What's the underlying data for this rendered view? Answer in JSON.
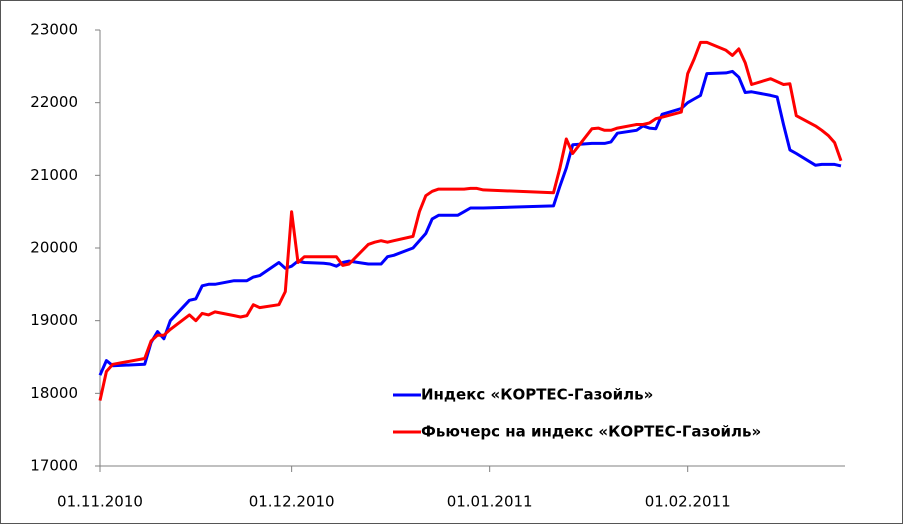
{
  "chart_data": {
    "type": "line",
    "x": [
      "01.11.2010",
      "02.11.2010",
      "03.11.2010",
      "08.11.2010",
      "09.11.2010",
      "10.11.2010",
      "11.11.2010",
      "12.11.2010",
      "15.11.2010",
      "16.11.2010",
      "17.11.2010",
      "18.11.2010",
      "19.11.2010",
      "22.11.2010",
      "23.11.2010",
      "24.11.2010",
      "25.11.2010",
      "26.11.2010",
      "29.11.2010",
      "30.11.2010",
      "01.12.2010",
      "02.12.2010",
      "03.12.2010",
      "06.12.2010",
      "07.12.2010",
      "08.12.2010",
      "09.12.2010",
      "10.12.2010",
      "13.12.2010",
      "14.12.2010",
      "15.12.2010",
      "16.12.2010",
      "17.12.2010",
      "20.12.2010",
      "21.12.2010",
      "22.12.2010",
      "23.12.2010",
      "24.12.2010",
      "27.12.2010",
      "28.12.2010",
      "29.12.2010",
      "30.12.2010",
      "31.12.2010",
      "11.01.2011",
      "12.01.2011",
      "13.01.2011",
      "14.01.2011",
      "17.01.2011",
      "18.01.2011",
      "19.01.2011",
      "20.01.2011",
      "21.01.2011",
      "24.01.2011",
      "25.01.2011",
      "26.01.2011",
      "27.01.2011",
      "28.01.2011",
      "31.01.2011",
      "01.02.2011",
      "02.02.2011",
      "03.02.2011",
      "04.02.2011",
      "07.02.2011",
      "08.02.2011",
      "09.02.2011",
      "10.02.2011",
      "11.02.2011",
      "14.02.2011",
      "15.02.2011",
      "16.02.2011",
      "17.02.2011",
      "18.02.2011",
      "21.02.2011",
      "22.02.2011",
      "23.02.2011",
      "24.02.2011",
      "25.02.2011"
    ],
    "series": [
      {
        "name": "Индекс «КОРТЕС-Газойль»",
        "color": "#0000ff",
        "values": [
          18250,
          18450,
          18380,
          18400,
          18700,
          18850,
          18750,
          19000,
          19280,
          19300,
          19480,
          19500,
          19500,
          19550,
          19550,
          19550,
          19600,
          19620,
          19800,
          19720,
          19750,
          19820,
          19800,
          19790,
          19780,
          19750,
          19800,
          19820,
          19780,
          19780,
          19780,
          19880,
          19900,
          20000,
          20100,
          20200,
          20400,
          20450,
          20450,
          20500,
          20550,
          20550,
          20550,
          20580,
          20850,
          21100,
          21420,
          21440,
          21440,
          21440,
          21460,
          21580,
          21620,
          21680,
          21650,
          21640,
          21840,
          21920,
          22000,
          22050,
          22100,
          22400,
          22410,
          22430,
          22350,
          22140,
          22150,
          22100,
          22080,
          21700,
          21350,
          21300,
          21140,
          21150,
          21150,
          21150,
          21130
        ]
      },
      {
        "name": "Фьючерс на индекс «КОРТЕС-Газойль»",
        "color": "#ff0000",
        "values": [
          17900,
          18300,
          18400,
          18480,
          18720,
          18800,
          18800,
          18880,
          19080,
          19000,
          19100,
          19080,
          19120,
          19070,
          19050,
          19070,
          19220,
          19180,
          19220,
          19400,
          20500,
          19800,
          19880,
          19880,
          19880,
          19880,
          19760,
          19780,
          20050,
          20080,
          20100,
          20080,
          20100,
          20160,
          20500,
          20720,
          20780,
          20810,
          20810,
          20810,
          20820,
          20820,
          20800,
          20760,
          21100,
          21500,
          21300,
          21640,
          21650,
          21620,
          21620,
          21650,
          21700,
          21700,
          21720,
          21780,
          21800,
          21870,
          22400,
          22600,
          22830,
          22830,
          22720,
          22650,
          22740,
          22550,
          22250,
          22330,
          22290,
          22250,
          22260,
          21820,
          21680,
          21620,
          21550,
          21450,
          21200
        ]
      }
    ],
    "xlim": [
      "01.11.2010",
      "25.02.2011"
    ],
    "xticks": [
      "01.11.2010",
      "01.12.2010",
      "01.01.2011",
      "01.02.2011"
    ],
    "ylim": [
      17000,
      23000
    ],
    "yticks": [
      17000,
      18000,
      19000,
      20000,
      21000,
      22000,
      23000
    ],
    "grid": false,
    "legend": "lower right"
  }
}
